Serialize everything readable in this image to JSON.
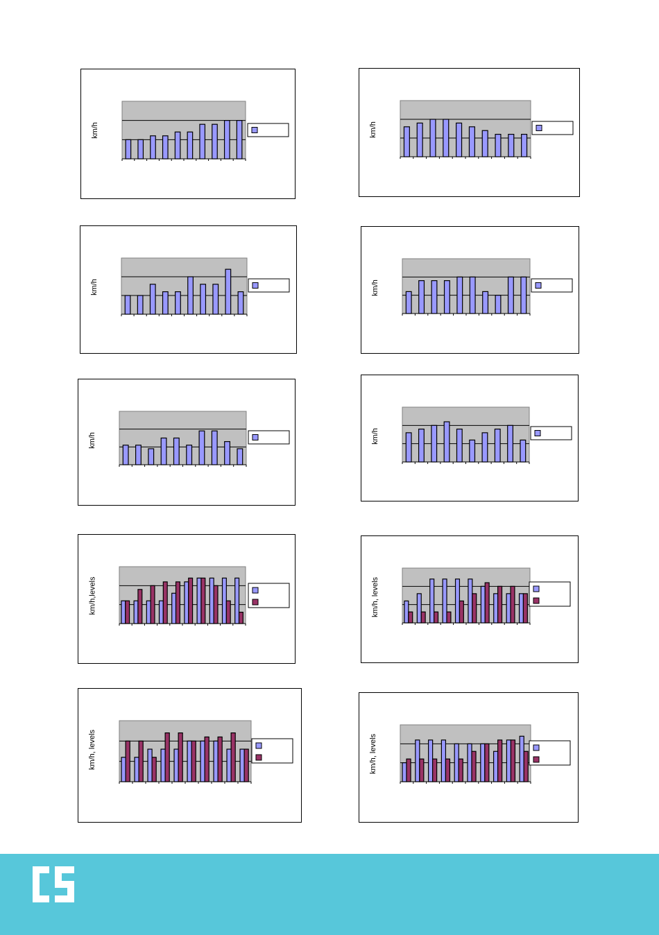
{
  "page": {
    "logo_text": "CS",
    "footer_color": "#57c7da"
  },
  "colors": {
    "series1": "#9999ff",
    "series2": "#993366",
    "plot_bg": "#c0c0c0"
  },
  "chart_data": [
    {
      "type": "bar",
      "ylabel": "km/h",
      "ylim": [
        0,
        3
      ],
      "grid": true,
      "legend": "right",
      "series": [
        {
          "values": [
            1.0,
            1.0,
            1.2,
            1.2,
            1.4,
            1.4,
            1.8,
            1.8,
            2.0,
            2.0
          ]
        }
      ]
    },
    {
      "type": "bar",
      "ylabel": "km/h",
      "ylim": [
        0,
        3
      ],
      "grid": true,
      "legend": "right",
      "series": [
        {
          "values": [
            1.6,
            1.8,
            2.0,
            2.0,
            1.8,
            1.6,
            1.4,
            1.2,
            1.2,
            1.2
          ]
        }
      ]
    },
    {
      "type": "bar",
      "ylabel": "km/h",
      "ylim": [
        0,
        3
      ],
      "grid": true,
      "legend": "right",
      "series": [
        {
          "values": [
            1.0,
            1.0,
            1.6,
            1.2,
            1.2,
            2.0,
            1.6,
            1.6,
            2.4,
            1.2
          ]
        }
      ]
    },
    {
      "type": "bar",
      "ylabel": "km/h",
      "ylim": [
        0,
        3
      ],
      "grid": true,
      "legend": "right",
      "series": [
        {
          "values": [
            1.2,
            1.8,
            1.8,
            1.8,
            2.0,
            2.0,
            1.2,
            1.0,
            2.0,
            2.0
          ]
        }
      ]
    },
    {
      "type": "bar",
      "ylabel": "km/h",
      "ylim": [
        0,
        3
      ],
      "grid": true,
      "legend": "right",
      "series": [
        {
          "values": [
            1.1,
            1.1,
            0.9,
            1.5,
            1.5,
            1.1,
            1.9,
            1.9,
            1.3,
            0.9
          ]
        }
      ]
    },
    {
      "type": "bar",
      "ylabel": "km/h",
      "ylim": [
        0,
        3
      ],
      "grid": true,
      "legend": "right",
      "series": [
        {
          "values": [
            1.6,
            1.8,
            2.0,
            2.2,
            1.8,
            1.2,
            1.6,
            1.8,
            2.0,
            1.2
          ]
        }
      ]
    },
    {
      "type": "bar",
      "ylabel": "km/h,levels",
      "ylim": [
        0,
        3
      ],
      "grid": true,
      "legend": "right",
      "series": [
        {
          "values": [
            1.2,
            1.2,
            1.2,
            1.2,
            1.6,
            2.2,
            2.4,
            2.4,
            2.4,
            2.4
          ]
        },
        {
          "values": [
            1.2,
            1.8,
            2.0,
            2.2,
            2.2,
            2.4,
            2.4,
            2.0,
            1.2,
            0.6
          ]
        }
      ]
    },
    {
      "type": "bar",
      "ylabel": "km/h, levels",
      "ylim": [
        0,
        3
      ],
      "grid": true,
      "legend": "right",
      "series": [
        {
          "values": [
            1.2,
            1.6,
            2.4,
            2.4,
            2.4,
            2.4,
            2.0,
            1.6,
            1.6,
            1.6
          ]
        },
        {
          "values": [
            0.6,
            0.6,
            0.6,
            0.6,
            1.2,
            1.6,
            2.2,
            2.0,
            2.0,
            1.6
          ]
        }
      ]
    },
    {
      "type": "bar",
      "ylabel": "km/h, levels",
      "ylim": [
        0,
        3
      ],
      "grid": true,
      "legend": "right",
      "series": [
        {
          "values": [
            1.2,
            1.2,
            1.6,
            1.6,
            1.6,
            2.0,
            2.0,
            2.0,
            1.6,
            1.6
          ]
        },
        {
          "values": [
            2.0,
            2.0,
            1.2,
            2.4,
            2.4,
            2.0,
            2.2,
            2.2,
            2.4,
            1.6
          ]
        }
      ]
    },
    {
      "type": "bar",
      "ylabel": "km/h, levels",
      "ylim": [
        0,
        3
      ],
      "grid": true,
      "legend": "right",
      "series": [
        {
          "values": [
            1.0,
            2.2,
            2.2,
            2.2,
            2.0,
            2.0,
            2.0,
            1.6,
            2.2,
            2.4
          ]
        },
        {
          "values": [
            1.2,
            1.2,
            1.2,
            1.2,
            1.2,
            1.6,
            2.0,
            2.2,
            2.2,
            1.6
          ]
        }
      ]
    }
  ]
}
